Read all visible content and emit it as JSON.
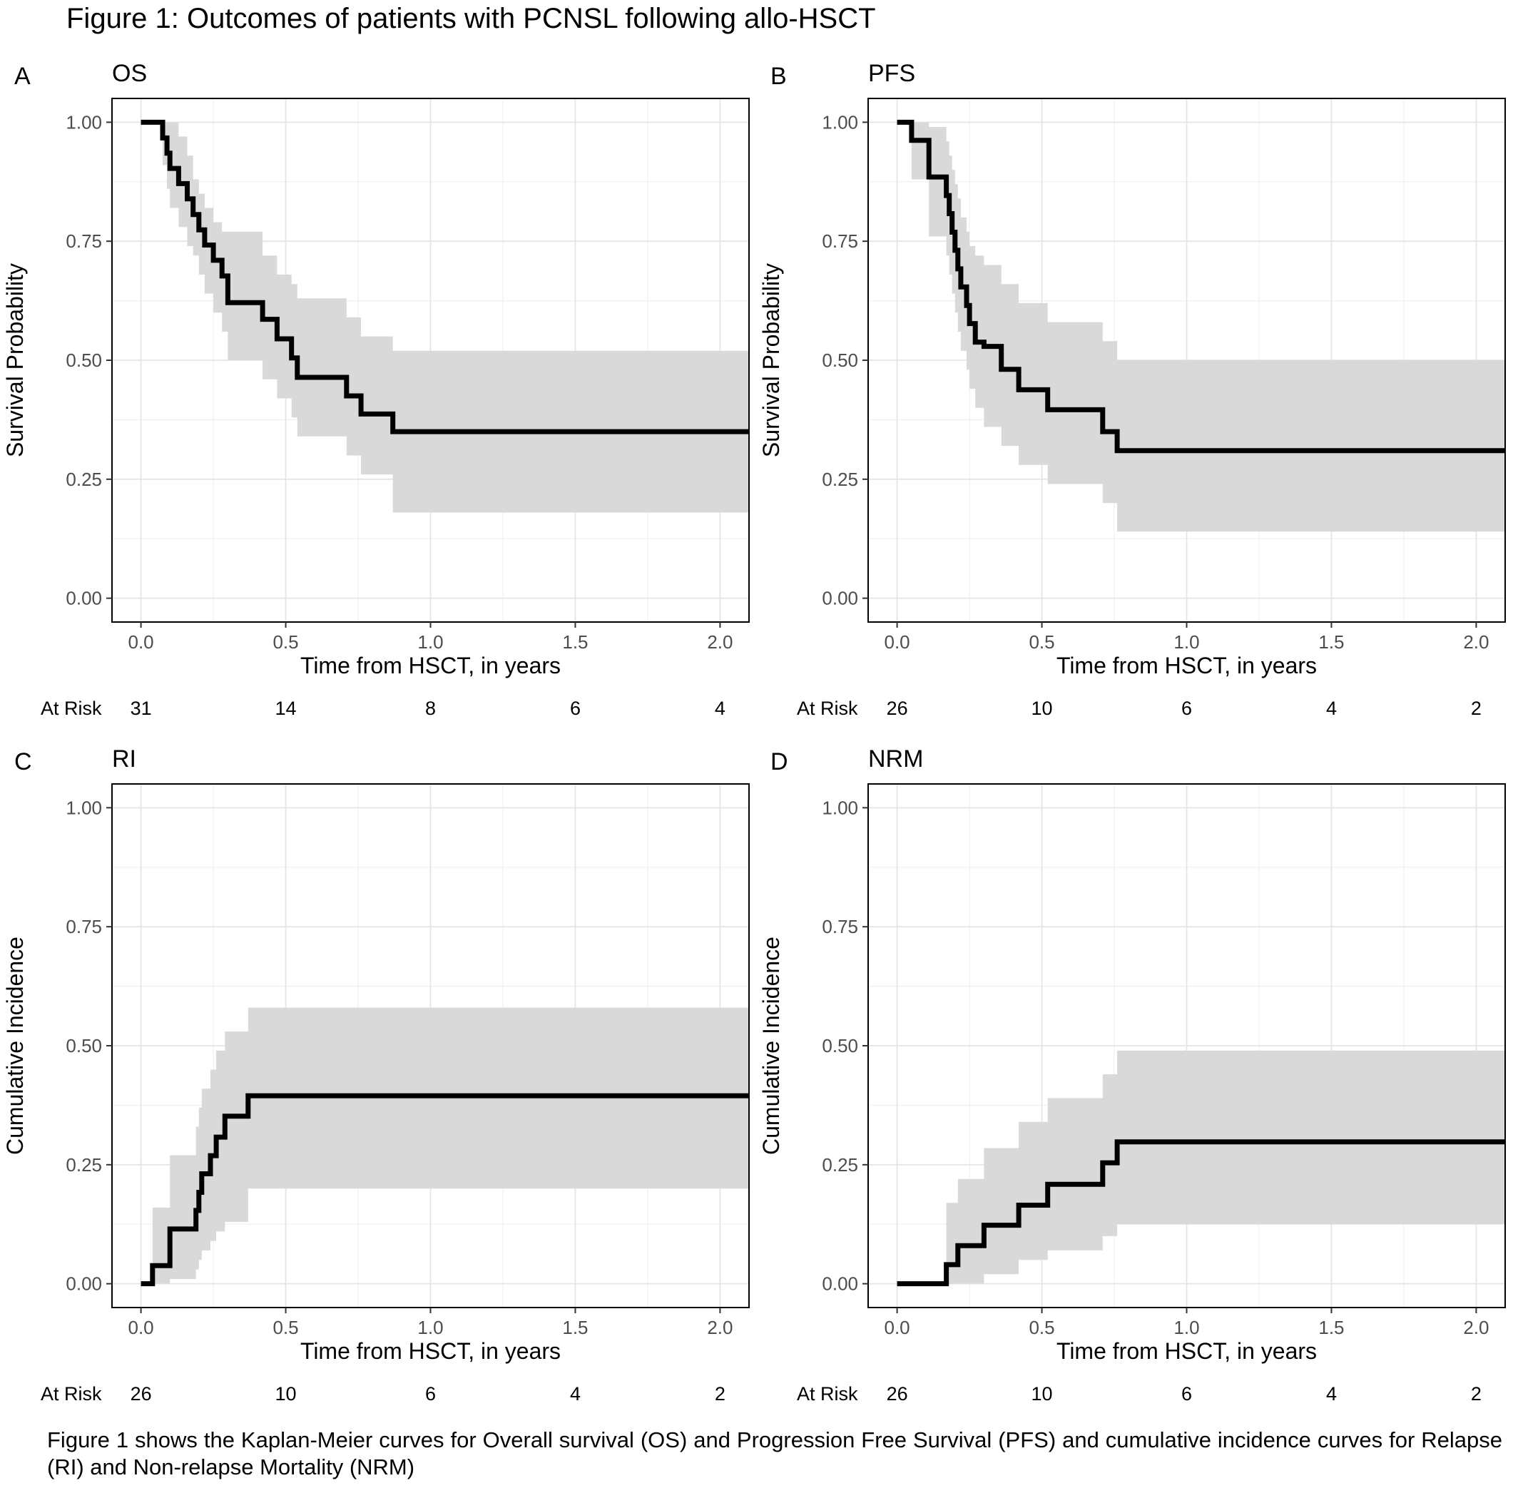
{
  "figure_title": "Figure 1: Outcomes of patients with PCNSL following allo-HSCT",
  "caption": "Figure 1 shows the Kaplan-Meier curves for Overall survival (OS) and Progression Free Survival (PFS) and cumulative incidence curves for Relapse (RI) and Non-relapse Mortality (NRM)",
  "colors": {
    "curve": "#000000",
    "ci_band": "#d9d9d9",
    "grid": "#e5e5e5",
    "panel_border": "#000000"
  },
  "chart_data": [
    {
      "panel": "A",
      "title": "OS",
      "type": "line",
      "kind": "survival",
      "xlabel": "Time from HSCT, in years",
      "ylabel": "Survival Probability",
      "xlim": [
        -0.1,
        2.1
      ],
      "ylim": [
        -0.05,
        1.05
      ],
      "xticks": [
        0.0,
        0.5,
        1.0,
        1.5,
        2.0
      ],
      "xtick_labels": [
        "0.0",
        "0.5",
        "1.0",
        "1.5",
        "2.0"
      ],
      "yticks": [
        0.0,
        0.25,
        0.5,
        0.75,
        1.0
      ],
      "ytick_labels": [
        "0.00",
        "0.25",
        "0.50",
        "0.75",
        "1.00"
      ],
      "grid": true,
      "risk_label": "At Risk",
      "at_risk": [
        31,
        14,
        8,
        6,
        4
      ],
      "series": [
        {
          "x": [
            0,
            0.075,
            0.09,
            0.1,
            0.13,
            0.16,
            0.18,
            0.2,
            0.22,
            0.25,
            0.28,
            0.3,
            0.42,
            0.47,
            0.52,
            0.54,
            0.71,
            0.76,
            0.87,
            2.1
          ],
          "y": [
            1.0,
            0.967,
            0.935,
            0.903,
            0.871,
            0.839,
            0.806,
            0.774,
            0.742,
            0.71,
            0.677,
            0.621,
            0.586,
            0.545,
            0.505,
            0.464,
            0.425,
            0.387,
            0.35,
            0.35
          ],
          "lower": [
            1.0,
            0.91,
            0.86,
            0.82,
            0.78,
            0.74,
            0.72,
            0.68,
            0.64,
            0.6,
            0.56,
            0.5,
            0.46,
            0.42,
            0.38,
            0.34,
            0.3,
            0.26,
            0.18,
            0.18
          ],
          "upper": [
            1.0,
            1.0,
            1.0,
            1.0,
            0.97,
            0.93,
            0.88,
            0.85,
            0.82,
            0.79,
            0.77,
            0.77,
            0.72,
            0.68,
            0.66,
            0.63,
            0.59,
            0.55,
            0.52,
            0.52
          ]
        }
      ]
    },
    {
      "panel": "B",
      "title": "PFS",
      "type": "line",
      "kind": "survival",
      "xlabel": "Time from HSCT, in years",
      "ylabel": "Survival Probability",
      "xlim": [
        -0.1,
        2.1
      ],
      "ylim": [
        -0.05,
        1.05
      ],
      "xticks": [
        0.0,
        0.5,
        1.0,
        1.5,
        2.0
      ],
      "xtick_labels": [
        "0.0",
        "0.5",
        "1.0",
        "1.5",
        "2.0"
      ],
      "yticks": [
        0.0,
        0.25,
        0.5,
        0.75,
        1.0
      ],
      "ytick_labels": [
        "0.00",
        "0.25",
        "0.50",
        "0.75",
        "1.00"
      ],
      "grid": true,
      "risk_label": "At Risk",
      "at_risk": [
        26,
        10,
        6,
        4,
        2
      ],
      "series": [
        {
          "x": [
            0,
            0.05,
            0.11,
            0.17,
            0.18,
            0.19,
            0.2,
            0.21,
            0.22,
            0.24,
            0.25,
            0.27,
            0.3,
            0.36,
            0.42,
            0.52,
            0.71,
            0.76,
            2.1
          ],
          "y": [
            1.0,
            0.962,
            0.885,
            0.846,
            0.808,
            0.769,
            0.731,
            0.692,
            0.654,
            0.615,
            0.577,
            0.538,
            0.529,
            0.481,
            0.438,
            0.396,
            0.35,
            0.31,
            0.31
          ],
          "lower": [
            1.0,
            0.88,
            0.76,
            0.72,
            0.68,
            0.64,
            0.6,
            0.56,
            0.52,
            0.48,
            0.44,
            0.4,
            0.36,
            0.32,
            0.28,
            0.24,
            0.2,
            0.14,
            0.14
          ],
          "upper": [
            1.0,
            1.0,
            0.99,
            0.96,
            0.93,
            0.9,
            0.87,
            0.84,
            0.8,
            0.77,
            0.74,
            0.72,
            0.7,
            0.66,
            0.62,
            0.58,
            0.54,
            0.5,
            0.5
          ]
        }
      ]
    },
    {
      "panel": "C",
      "title": "RI",
      "type": "line",
      "kind": "incidence",
      "xlabel": "Time from HSCT, in years",
      "ylabel": "Cumulative Incidence",
      "xlim": [
        -0.1,
        2.1
      ],
      "ylim": [
        -0.05,
        1.05
      ],
      "xticks": [
        0.0,
        0.5,
        1.0,
        1.5,
        2.0
      ],
      "xtick_labels": [
        "0.0",
        "0.5",
        "1.0",
        "1.5",
        "2.0"
      ],
      "yticks": [
        0.0,
        0.25,
        0.5,
        0.75,
        1.0
      ],
      "ytick_labels": [
        "0.00",
        "0.25",
        "0.50",
        "0.75",
        "1.00"
      ],
      "grid": true,
      "risk_label": "At Risk",
      "at_risk": [
        26,
        10,
        6,
        4,
        2
      ],
      "series": [
        {
          "x": [
            0,
            0.04,
            0.1,
            0.19,
            0.2,
            0.21,
            0.24,
            0.26,
            0.29,
            0.37,
            2.1
          ],
          "y": [
            0.0,
            0.038,
            0.115,
            0.154,
            0.192,
            0.231,
            0.269,
            0.308,
            0.352,
            0.395,
            0.395
          ],
          "lower": [
            0.0,
            0.0,
            0.01,
            0.03,
            0.05,
            0.07,
            0.09,
            0.11,
            0.13,
            0.2,
            0.2
          ],
          "upper": [
            0.0,
            0.16,
            0.27,
            0.33,
            0.37,
            0.41,
            0.45,
            0.49,
            0.53,
            0.58,
            0.58
          ]
        }
      ]
    },
    {
      "panel": "D",
      "title": "NRM",
      "type": "line",
      "kind": "incidence",
      "xlabel": "Time from HSCT, in years",
      "ylabel": "Cumulative Incidence",
      "xlim": [
        -0.1,
        2.1
      ],
      "ylim": [
        -0.05,
        1.05
      ],
      "xticks": [
        0.0,
        0.5,
        1.0,
        1.5,
        2.0
      ],
      "xtick_labels": [
        "0.0",
        "0.5",
        "1.0",
        "1.5",
        "2.0"
      ],
      "yticks": [
        0.0,
        0.25,
        0.5,
        0.75,
        1.0
      ],
      "ytick_labels": [
        "0.00",
        "0.25",
        "0.50",
        "0.75",
        "1.00"
      ],
      "grid": true,
      "risk_label": "At Risk",
      "at_risk": [
        26,
        10,
        6,
        4,
        2
      ],
      "series": [
        {
          "x": [
            0,
            0.17,
            0.21,
            0.3,
            0.42,
            0.52,
            0.71,
            0.76,
            2.1
          ],
          "y": [
            0.0,
            0.04,
            0.08,
            0.123,
            0.165,
            0.209,
            0.254,
            0.298,
            0.298
          ],
          "lower": [
            0.0,
            0.0,
            0.0,
            0.02,
            0.05,
            0.07,
            0.1,
            0.125,
            0.125
          ],
          "upper": [
            0.0,
            0.17,
            0.22,
            0.285,
            0.34,
            0.39,
            0.44,
            0.49,
            0.49
          ]
        }
      ]
    }
  ]
}
